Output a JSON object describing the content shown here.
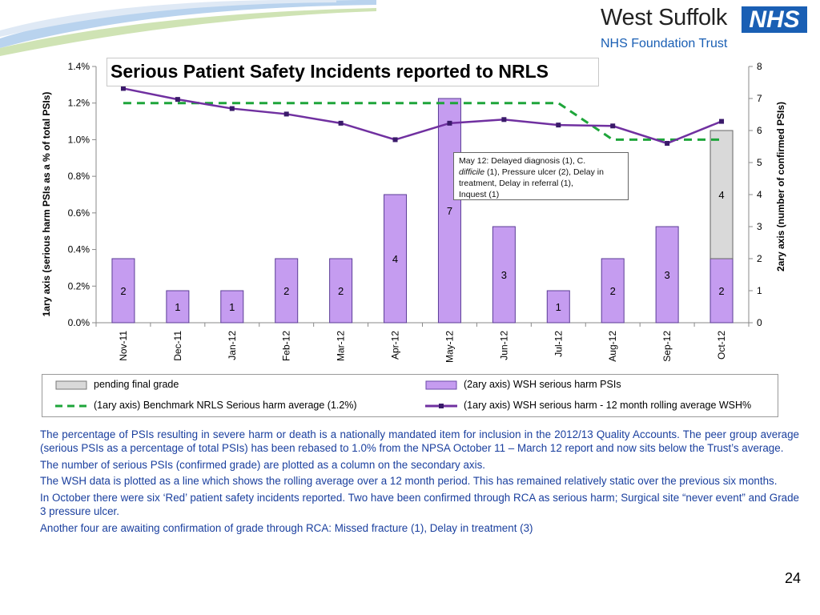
{
  "header": {
    "org_name": "West Suffolk",
    "nhs_logo_text": "NHS",
    "trust_name": "NHS Foundation Trust"
  },
  "chart_data": {
    "type": "bar",
    "title": "Serious Patient Safety Incidents reported to NRLS",
    "categories": [
      "Nov-11",
      "Dec-11",
      "Jan-12",
      "Feb-12",
      "Mar-12",
      "Apr-12",
      "May-12",
      "Jun-12",
      "Jul-12",
      "Aug-12",
      "Sep-12",
      "Oct-12"
    ],
    "y1label": "1ary axis (serious harm PSIs as a % of total PSIs)",
    "y2label": "2ary  axis (number of confirmed PSIs)",
    "y1lim": [
      0,
      1.4
    ],
    "y1ticks": [
      "0.0%",
      "0.2%",
      "0.4%",
      "0.6%",
      "0.8%",
      "1.0%",
      "1.2%",
      "1.4%"
    ],
    "y2lim": [
      0,
      8
    ],
    "y2ticks": [
      "0",
      "1",
      "2",
      "3",
      "4",
      "5",
      "6",
      "7",
      "8"
    ],
    "series": [
      {
        "name": "(2ary axis) WSH serious harm PSIs",
        "kind": "bar",
        "axis": "y2",
        "color": "#c59cf0",
        "values": [
          2,
          1,
          1,
          2,
          2,
          4,
          7,
          3,
          1,
          2,
          3,
          2
        ],
        "labels": [
          "2",
          "1",
          "1",
          "2",
          "2",
          "4",
          "7",
          "3",
          "1",
          "2",
          "3",
          "2"
        ]
      },
      {
        "name": "pending final grade",
        "kind": "bar-stacked",
        "axis": "y2",
        "color": "#d9d9d9",
        "values": [
          0,
          0,
          0,
          0,
          0,
          0,
          0,
          0,
          0,
          0,
          0,
          4
        ],
        "labels": [
          "",
          "",
          "",
          "",
          "",
          "",
          "",
          "",
          "",
          "",
          "",
          "4"
        ]
      },
      {
        "name": "(1ary axis) Benchmark NRLS Serious harm average (1.2%)",
        "kind": "line-dashed",
        "axis": "y1",
        "color": "#1ea53a",
        "values": [
          1.2,
          1.2,
          1.2,
          1.2,
          1.2,
          1.2,
          1.2,
          1.2,
          1.2,
          1.0,
          1.0,
          1.0
        ]
      },
      {
        "name": "(1ary axis) WSH serious harm - 12 month rolling average   WSH%",
        "kind": "line",
        "axis": "y1",
        "color": "#7030a0",
        "values": [
          1.28,
          1.22,
          1.17,
          1.14,
          1.09,
          1.0,
          1.09,
          1.11,
          1.08,
          1.075,
          0.98,
          1.1
        ]
      }
    ],
    "annotation": {
      "line1": "May 12:  Delayed diagnosis (1), C.",
      "line2_italic": "difficile",
      "line2_rest": " (1), Pressure ulcer (2), Delay in",
      "line3": "treatment,  Delay in referral (1),",
      "line4": "Inquest (1)"
    },
    "legend_placement": "bottom",
    "grid": false
  },
  "text": {
    "para1": "The percentage of PSIs resulting in severe harm or death is a nationally mandated item for inclusion in the 2012/13 Quality Accounts. The peer group average (serious PSIs as a percentage of total PSIs) has been rebased to 1.0% from the NPSA October 11 – March 12 report and now sits below the Trust’s average.",
    "para2": "The number of serious PSIs (confirmed grade) are plotted as a column on the secondary axis.",
    "para3": "The WSH data is plotted as a line which shows the rolling average over a 12 month period. This has remained relatively static over the previous six months.",
    "para4": "In October there were six ‘Red’ patient safety incidents reported. Two have been confirmed through RCA as serious harm; Surgical site “never event” and Grade 3 pressure ulcer.",
    "para5": "Another four are awaiting confirmation of grade through RCA: Missed fracture (1), Delay in treatment (3)",
    "page_number": "24"
  }
}
